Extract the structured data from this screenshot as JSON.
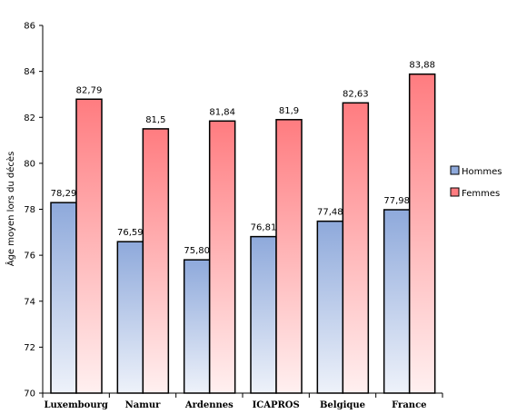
{
  "chart_data": {
    "type": "bar",
    "categories": [
      "Luxembourg",
      "Namur",
      "Ardennes",
      "ICAPROS",
      "Belgique",
      "France"
    ],
    "series": [
      {
        "name": "Hommes",
        "values": [
          78.29,
          76.59,
          75.8,
          76.81,
          77.48,
          77.98
        ],
        "labels": [
          "78,29",
          "76,59",
          "75,80",
          "76,81",
          "77,48",
          "77,98"
        ],
        "color_top": "#8EA9DB",
        "color_bottom": "#EEF2FA"
      },
      {
        "name": "Femmes",
        "values": [
          82.79,
          81.5,
          81.84,
          81.9,
          82.63,
          83.88
        ],
        "labels": [
          "82,79",
          "81,5",
          "81,84",
          "81,9",
          "82,63",
          "83,88"
        ],
        "color_top": "#FF7C80",
        "color_bottom": "#FFF0F0"
      }
    ],
    "ylabel": "Âge moyen lors du décès",
    "xlabel": "",
    "ylim": [
      70,
      86
    ],
    "yticks": [
      "70",
      "72",
      "74",
      "76",
      "78",
      "80",
      "82",
      "84",
      "86"
    ],
    "grid": false,
    "legend": "right"
  }
}
